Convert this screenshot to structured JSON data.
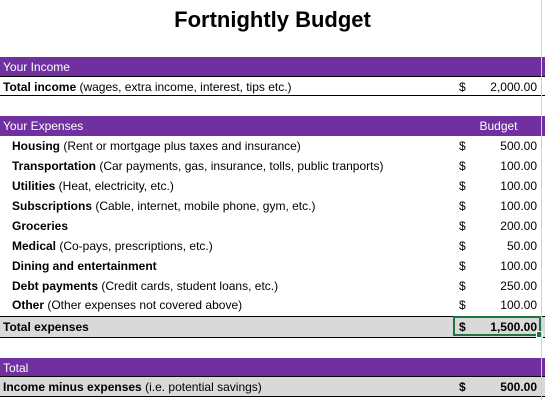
{
  "title": "Fortnightly Budget",
  "income": {
    "header": "Your Income",
    "total": {
      "label": "Total income",
      "note": " (wages, extra income, interest, tips etc.)",
      "currency": "$",
      "amount": "2,000.00"
    }
  },
  "expenses": {
    "header": "Your Expenses",
    "column_header": "Budget",
    "items": [
      {
        "label": "Housing",
        "note": " (Rent or mortgage plus taxes and insurance)",
        "currency": "$",
        "amount": "500.00"
      },
      {
        "label": "Transportation",
        "note": " (Car payments, gas, insurance, tolls, public tranports)",
        "currency": "$",
        "amount": "100.00"
      },
      {
        "label": "Utilities",
        "note": " (Heat, electricity, etc.)",
        "currency": "$",
        "amount": "100.00"
      },
      {
        "label": "Subscriptions",
        "note": " (Cable, internet, mobile phone, gym, etc.)",
        "currency": "$",
        "amount": "100.00"
      },
      {
        "label": "Groceries",
        "note": "",
        "currency": "$",
        "amount": "200.00"
      },
      {
        "label": "Medical",
        "note": " (Co-pays, prescriptions, etc.)",
        "currency": "$",
        "amount": "50.00"
      },
      {
        "label": "Dining and entertainment",
        "note": "",
        "currency": "$",
        "amount": "100.00"
      },
      {
        "label": "Debt payments",
        "note": " (Credit cards, student loans, etc.)",
        "currency": "$",
        "amount": "250.00"
      },
      {
        "label": "Other",
        "note": " (Other expenses not covered above)",
        "currency": "$",
        "amount": "100.00"
      }
    ],
    "total": {
      "label": "Total expenses",
      "currency": "$",
      "amount": "1,500.00"
    }
  },
  "summary": {
    "header": "Total",
    "net": {
      "label": "Income minus expenses",
      "note": " (i.e. potential savings)",
      "currency": "$",
      "amount": "500.00"
    }
  },
  "colors": {
    "header_band": "#7030a0",
    "total_band": "#d9d9d9",
    "selection": "#217346"
  }
}
